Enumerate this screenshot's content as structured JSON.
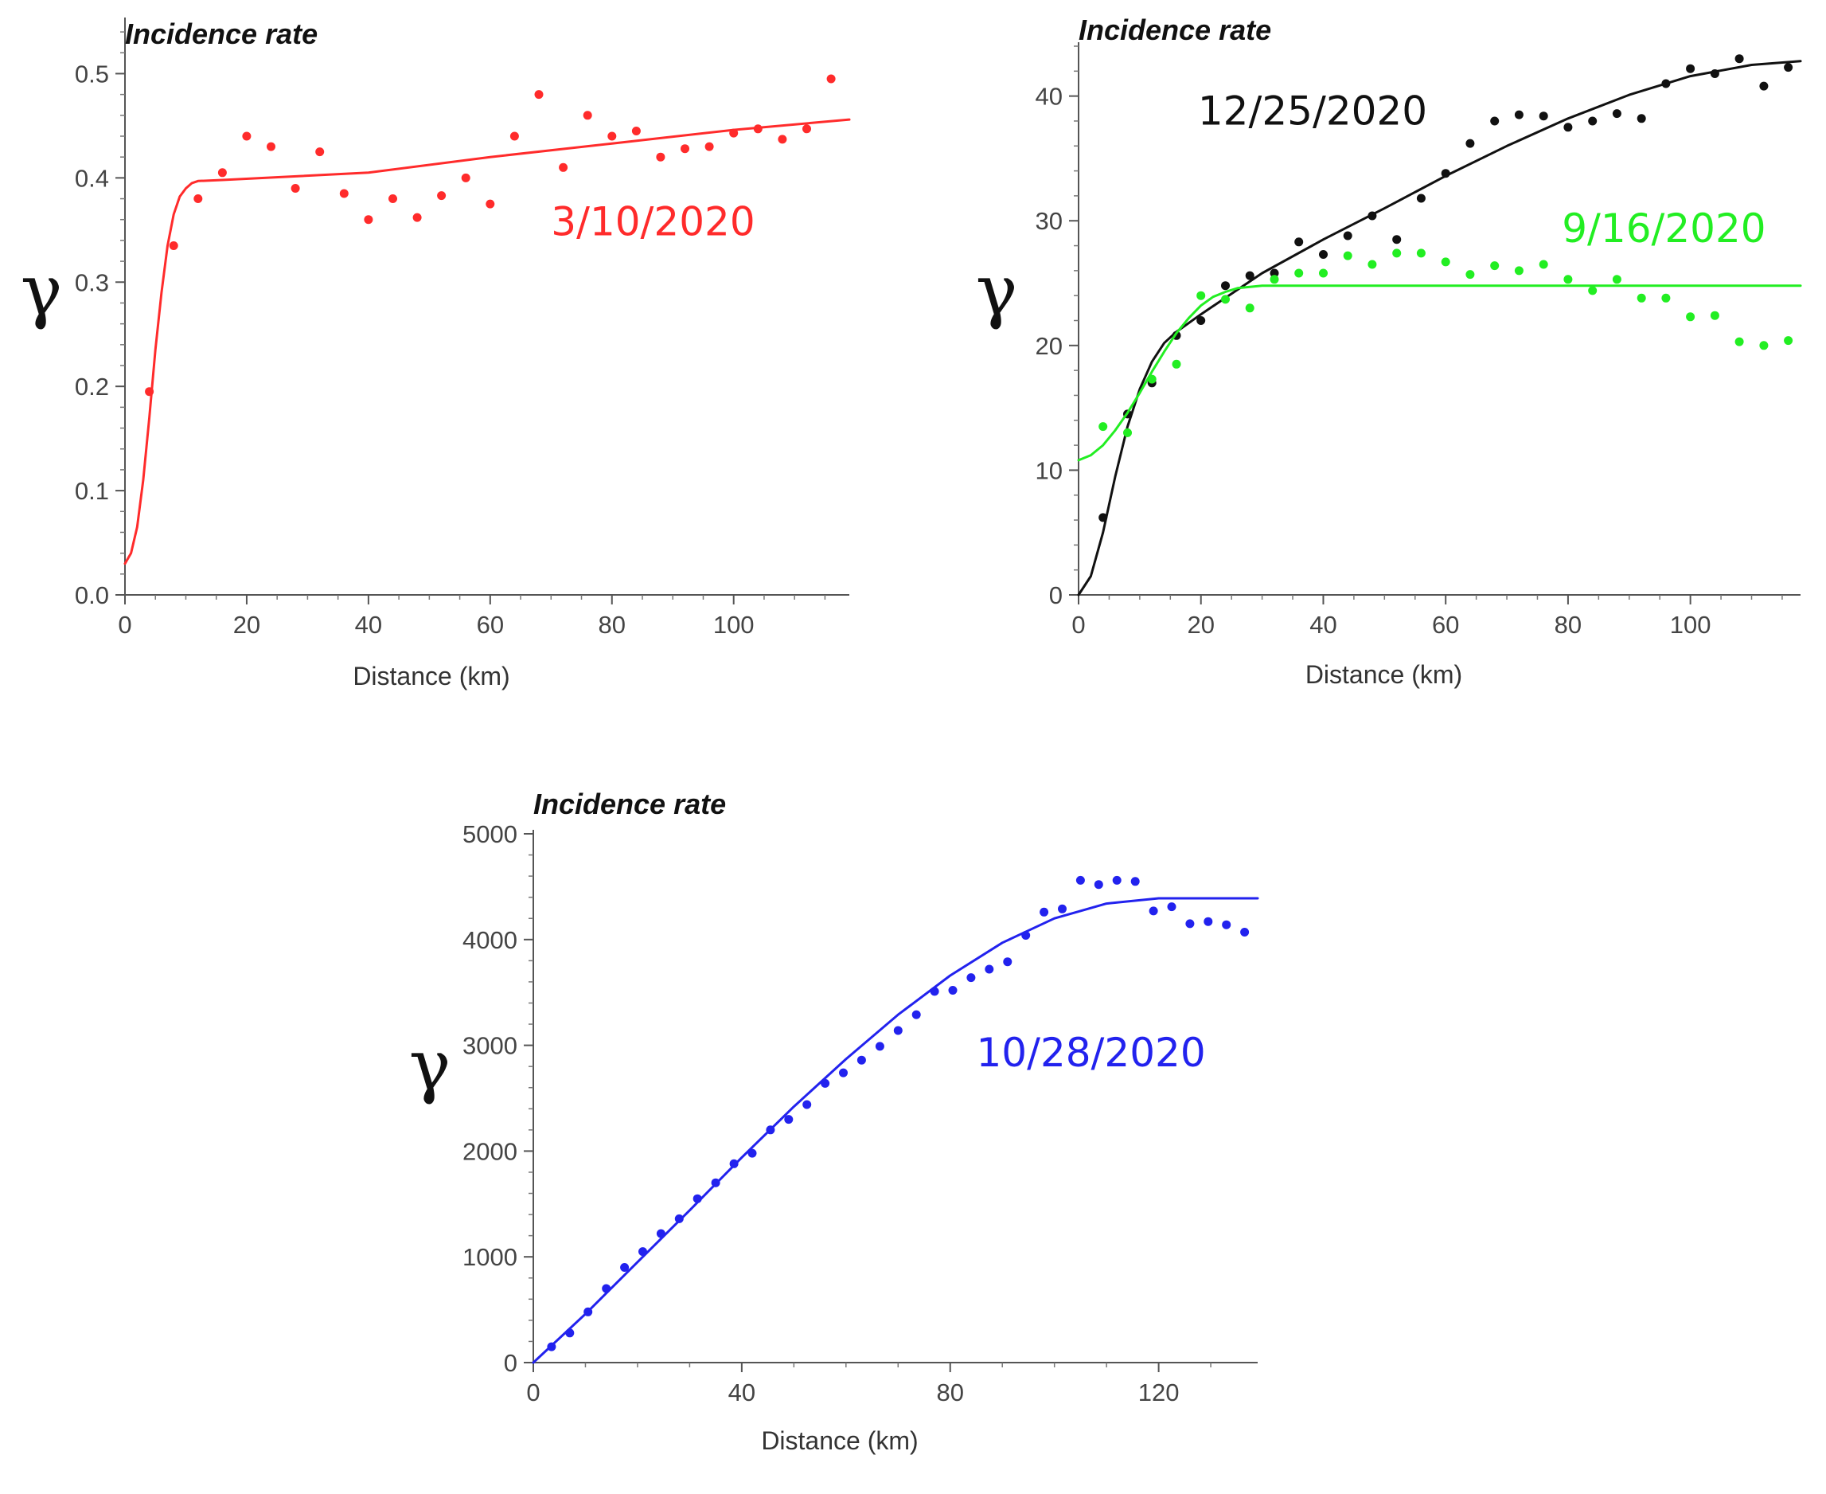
{
  "chart_data": [
    {
      "id": "chart-march",
      "type": "scatter",
      "title": "Incidence rate",
      "xlabel": "Distance (km)",
      "ylabel": "γ",
      "xlim": [
        0,
        119
      ],
      "ylim": [
        0,
        0.55
      ],
      "xticks": [
        0,
        20,
        40,
        60,
        80,
        100
      ],
      "yticks": [
        0.0,
        0.1,
        0.2,
        0.3,
        0.4,
        0.5
      ],
      "ytick_labels": [
        "0.0",
        "0.1",
        "0.2",
        "0.3",
        "0.4",
        "0.5"
      ],
      "series": [
        {
          "name": "3/10/2020",
          "color": "#ff2b2b",
          "points": [
            [
              4,
              0.195
            ],
            [
              8,
              0.335
            ],
            [
              12,
              0.38
            ],
            [
              16,
              0.405
            ],
            [
              20,
              0.44
            ],
            [
              24,
              0.43
            ],
            [
              28,
              0.39
            ],
            [
              32,
              0.425
            ],
            [
              36,
              0.385
            ],
            [
              40,
              0.36
            ],
            [
              44,
              0.38
            ],
            [
              48,
              0.362
            ],
            [
              52,
              0.383
            ],
            [
              56,
              0.4
            ],
            [
              60,
              0.375
            ],
            [
              64,
              0.44
            ],
            [
              68,
              0.48
            ],
            [
              72,
              0.41
            ],
            [
              76,
              0.46
            ],
            [
              80,
              0.44
            ],
            [
              84,
              0.445
            ],
            [
              88,
              0.42
            ],
            [
              92,
              0.428
            ],
            [
              96,
              0.43
            ],
            [
              100,
              0.443
            ],
            [
              104,
              0.447
            ],
            [
              108,
              0.437
            ],
            [
              112,
              0.447
            ],
            [
              116,
              0.495
            ]
          ],
          "fit": [
            [
              0,
              0.03
            ],
            [
              1,
              0.04
            ],
            [
              2,
              0.065
            ],
            [
              3,
              0.11
            ],
            [
              4,
              0.17
            ],
            [
              5,
              0.235
            ],
            [
              6,
              0.29
            ],
            [
              7,
              0.335
            ],
            [
              8,
              0.365
            ],
            [
              9,
              0.382
            ],
            [
              10,
              0.39
            ],
            [
              11,
              0.395
            ],
            [
              12,
              0.397
            ],
            [
              16,
              0.398
            ],
            [
              40,
              0.405
            ],
            [
              60,
              0.42
            ],
            [
              80,
              0.433
            ],
            [
              100,
              0.446
            ],
            [
              119,
              0.456
            ]
          ]
        }
      ],
      "annotations": [
        {
          "text": "3/10/2020",
          "color": "#ff2b2b",
          "x": 70,
          "y": 0.345
        }
      ]
    },
    {
      "id": "chart-late",
      "type": "scatter",
      "title": "Incidence rate",
      "xlabel": "Distance (km)",
      "ylabel": "γ",
      "xlim": [
        0,
        118
      ],
      "ylim": [
        0,
        44
      ],
      "xticks": [
        0,
        20,
        40,
        60,
        80,
        100
      ],
      "yticks": [
        0,
        10,
        20,
        30,
        40
      ],
      "ytick_labels": [
        "0",
        "10",
        "20",
        "30",
        "40"
      ],
      "series": [
        {
          "name": "12/25/2020",
          "color": "#111111",
          "points": [
            [
              4,
              6.2
            ],
            [
              8,
              14.5
            ],
            [
              12,
              17
            ],
            [
              16,
              20.8
            ],
            [
              20,
              22
            ],
            [
              24,
              24.8
            ],
            [
              28,
              25.6
            ],
            [
              32,
              25.8
            ],
            [
              36,
              28.3
            ],
            [
              40,
              27.3
            ],
            [
              44,
              28.8
            ],
            [
              48,
              30.4
            ],
            [
              52,
              28.5
            ],
            [
              56,
              31.8
            ],
            [
              60,
              33.8
            ],
            [
              64,
              36.2
            ],
            [
              68,
              38
            ],
            [
              72,
              38.5
            ],
            [
              76,
              38.4
            ],
            [
              80,
              37.5
            ],
            [
              84,
              38
            ],
            [
              88,
              38.6
            ],
            [
              92,
              38.2
            ],
            [
              96,
              41
            ],
            [
              100,
              42.2
            ],
            [
              104,
              41.8
            ],
            [
              108,
              43
            ],
            [
              112,
              40.8
            ],
            [
              116,
              42.3
            ]
          ],
          "fit": [
            [
              0,
              0
            ],
            [
              2,
              1.5
            ],
            [
              4,
              5
            ],
            [
              6,
              9.5
            ],
            [
              8,
              13.5
            ],
            [
              10,
              16.5
            ],
            [
              12,
              18.7
            ],
            [
              14,
              20.2
            ],
            [
              16,
              21.1
            ],
            [
              20,
              22.5
            ],
            [
              30,
              25.8
            ],
            [
              40,
              28.5
            ],
            [
              50,
              31
            ],
            [
              60,
              33.6
            ],
            [
              70,
              36
            ],
            [
              80,
              38.2
            ],
            [
              90,
              40.1
            ],
            [
              100,
              41.6
            ],
            [
              110,
              42.5
            ],
            [
              118,
              42.8
            ]
          ]
        },
        {
          "name": "9/16/2020",
          "color": "#22ee22",
          "points": [
            [
              4,
              13.5
            ],
            [
              8,
              13
            ],
            [
              12,
              17.3
            ],
            [
              16,
              18.5
            ],
            [
              20,
              24
            ],
            [
              24,
              23.7
            ],
            [
              28,
              23
            ],
            [
              32,
              25.3
            ],
            [
              36,
              25.8
            ],
            [
              40,
              25.8
            ],
            [
              44,
              27.2
            ],
            [
              48,
              26.5
            ],
            [
              52,
              27.4
            ],
            [
              56,
              27.4
            ],
            [
              60,
              26.7
            ],
            [
              64,
              25.7
            ],
            [
              68,
              26.4
            ],
            [
              72,
              26
            ],
            [
              76,
              26.5
            ],
            [
              80,
              25.3
            ],
            [
              84,
              24.4
            ],
            [
              88,
              25.3
            ],
            [
              92,
              23.8
            ],
            [
              96,
              23.8
            ],
            [
              100,
              22.3
            ],
            [
              104,
              22.4
            ],
            [
              108,
              20.3
            ],
            [
              112,
              20
            ],
            [
              116,
              20.4
            ]
          ],
          "fit": [
            [
              0,
              10.8
            ],
            [
              2,
              11.2
            ],
            [
              4,
              12
            ],
            [
              6,
              13.2
            ],
            [
              8,
              14.6
            ],
            [
              10,
              16.2
            ],
            [
              12,
              17.9
            ],
            [
              14,
              19.5
            ],
            [
              16,
              21
            ],
            [
              18,
              22.2
            ],
            [
              20,
              23.2
            ],
            [
              22,
              23.9
            ],
            [
              24,
              24.3
            ],
            [
              26,
              24.6
            ],
            [
              28,
              24.7
            ],
            [
              30,
              24.8
            ],
            [
              118,
              24.8
            ]
          ]
        }
      ],
      "annotations": [
        {
          "text": "12/25/2020",
          "color": "#111111",
          "x": 19.5,
          "y": 37.7
        },
        {
          "text": "9/16/2020",
          "color": "#22ee22",
          "x": 79,
          "y": 28.3
        }
      ]
    },
    {
      "id": "chart-october",
      "type": "scatter",
      "title": "Incidence rate",
      "xlabel": "Distance (km)",
      "ylabel": "γ",
      "xlim": [
        0,
        139
      ],
      "ylim": [
        0,
        5000
      ],
      "xticks": [
        0,
        40,
        80,
        120
      ],
      "yticks": [
        0,
        1000,
        2000,
        3000,
        4000,
        5000
      ],
      "ytick_labels": [
        "0",
        "1000",
        "2000",
        "3000",
        "4000",
        "5000"
      ],
      "series": [
        {
          "name": "10/28/2020",
          "color": "#2222ee",
          "points": [
            [
              3.5,
              150
            ],
            [
              7,
              280
            ],
            [
              10.5,
              480
            ],
            [
              14,
              700
            ],
            [
              17.5,
              900
            ],
            [
              21,
              1050
            ],
            [
              24.5,
              1220
            ],
            [
              28,
              1360
            ],
            [
              31.5,
              1550
            ],
            [
              35,
              1700
            ],
            [
              38.5,
              1880
            ],
            [
              42,
              1980
            ],
            [
              45.5,
              2200
            ],
            [
              49,
              2300
            ],
            [
              52.5,
              2440
            ],
            [
              56,
              2640
            ],
            [
              59.5,
              2740
            ],
            [
              63,
              2860
            ],
            [
              66.5,
              2990
            ],
            [
              70,
              3140
            ],
            [
              73.5,
              3290
            ],
            [
              77,
              3510
            ],
            [
              80.5,
              3520
            ],
            [
              84,
              3640
            ],
            [
              87.5,
              3720
            ],
            [
              91,
              3790
            ],
            [
              94.5,
              4040
            ],
            [
              98,
              4260
            ],
            [
              101.5,
              4290
            ],
            [
              105,
              4560
            ],
            [
              108.5,
              4520
            ],
            [
              112,
              4560
            ],
            [
              115.5,
              4550
            ],
            [
              119,
              4270
            ],
            [
              122.5,
              4310
            ],
            [
              126,
              4150
            ],
            [
              129.5,
              4170
            ],
            [
              133,
              4140
            ],
            [
              136.5,
              4070
            ]
          ],
          "fit": [
            [
              0,
              0
            ],
            [
              10,
              460
            ],
            [
              20,
              950
            ],
            [
              30,
              1440
            ],
            [
              40,
              1940
            ],
            [
              50,
              2420
            ],
            [
              60,
              2870
            ],
            [
              70,
              3290
            ],
            [
              80,
              3660
            ],
            [
              90,
              3970
            ],
            [
              100,
              4200
            ],
            [
              110,
              4340
            ],
            [
              120,
              4390
            ],
            [
              139,
              4390
            ]
          ]
        }
      ],
      "annotations": [
        {
          "text": "10/28/2020",
          "color": "#2222ee",
          "x": 85,
          "y": 2800
        }
      ]
    }
  ]
}
